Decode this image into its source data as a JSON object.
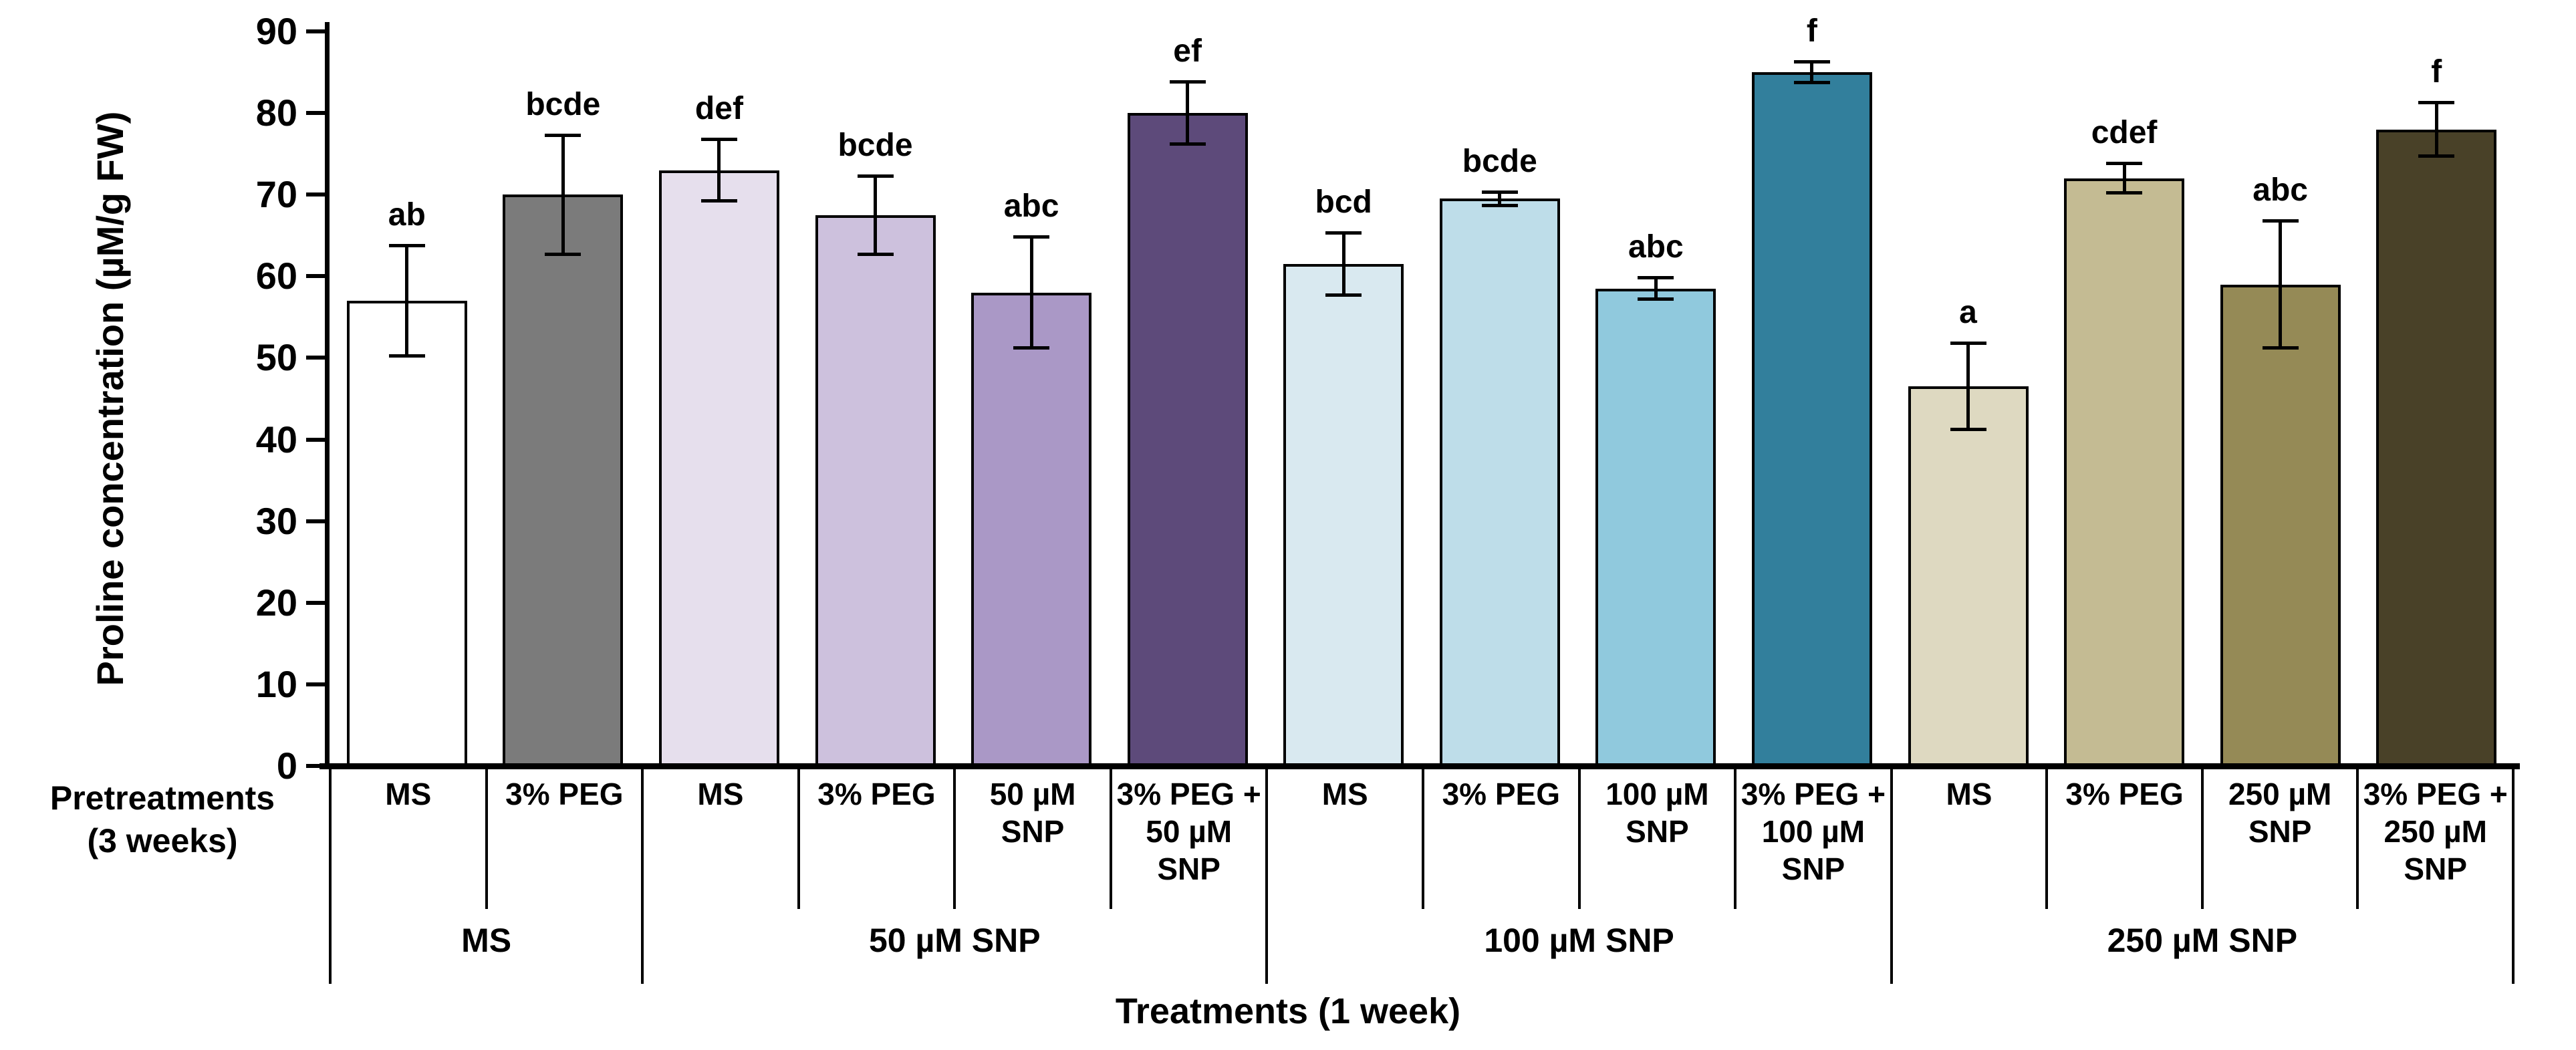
{
  "chart_data": {
    "type": "bar",
    "title": "",
    "ylabel": "Proline concentration (µM/g FW)",
    "xlabel": "Treatments (1 week)",
    "pretreatments_label_line1": "Pretreatments",
    "pretreatments_label_line2": "(3 weeks)",
    "ylim": [
      0,
      90
    ],
    "ytick_step": 10,
    "yticks": [
      0,
      10,
      20,
      30,
      40,
      50,
      60,
      70,
      80,
      90
    ],
    "grid": false,
    "legend": "none",
    "error_bars": true,
    "bar_border_color": "#000000",
    "groups": [
      {
        "treatment": "MS",
        "bars": [
          {
            "pretreatment": "MS",
            "value": 57,
            "error": 7,
            "letter": "ab",
            "color": "#ffffff"
          },
          {
            "pretreatment": "3% PEG",
            "value": 70,
            "error": 7.5,
            "letter": "bcde",
            "color": "#7b7b7b"
          }
        ]
      },
      {
        "treatment": "50 µM SNP",
        "bars": [
          {
            "pretreatment": "MS",
            "value": 73,
            "error": 4,
            "letter": "def",
            "color": "#e6dfed"
          },
          {
            "pretreatment": "3% PEG",
            "value": 67.5,
            "error": 5,
            "letter": "bcde",
            "color": "#cdc1dd"
          },
          {
            "pretreatment": "50 µM SNP",
            "value": 58,
            "error": 7,
            "letter": "abc",
            "color": "#aa98c6"
          },
          {
            "pretreatment": "3% PEG + 50 µM SNP",
            "value": 80,
            "error": 4,
            "letter": "ef",
            "color": "#5d4a7a"
          }
        ]
      },
      {
        "treatment": "100 µM SNP",
        "bars": [
          {
            "pretreatment": "MS",
            "value": 61.5,
            "error": 4,
            "letter": "bcd",
            "color": "#d9e9f0"
          },
          {
            "pretreatment": "3% PEG",
            "value": 69.5,
            "error": 1,
            "letter": "bcde",
            "color": "#bedde9"
          },
          {
            "pretreatment": "100 µM SNP",
            "value": 58.5,
            "error": 1.5,
            "letter": "abc",
            "color": "#90c9dd"
          },
          {
            "pretreatment": "3% PEG + 100 µM SNP",
            "value": 85,
            "error": 1.5,
            "letter": "f",
            "color": "#327f9c"
          }
        ]
      },
      {
        "treatment": "250 µM SNP",
        "bars": [
          {
            "pretreatment": "MS",
            "value": 46.5,
            "error": 5.5,
            "letter": "a",
            "color": "#ded9c1"
          },
          {
            "pretreatment": "3% PEG",
            "value": 72,
            "error": 2,
            "letter": "cdef",
            "color": "#c4bb93"
          },
          {
            "pretreatment": "250 µM SNP",
            "value": 59,
            "error": 8,
            "letter": "abc",
            "color": "#958a56"
          },
          {
            "pretreatment": "3% PEG + 250 µM SNP",
            "value": 78,
            "error": 3.5,
            "letter": "f",
            "color": "#494128"
          }
        ]
      }
    ]
  }
}
